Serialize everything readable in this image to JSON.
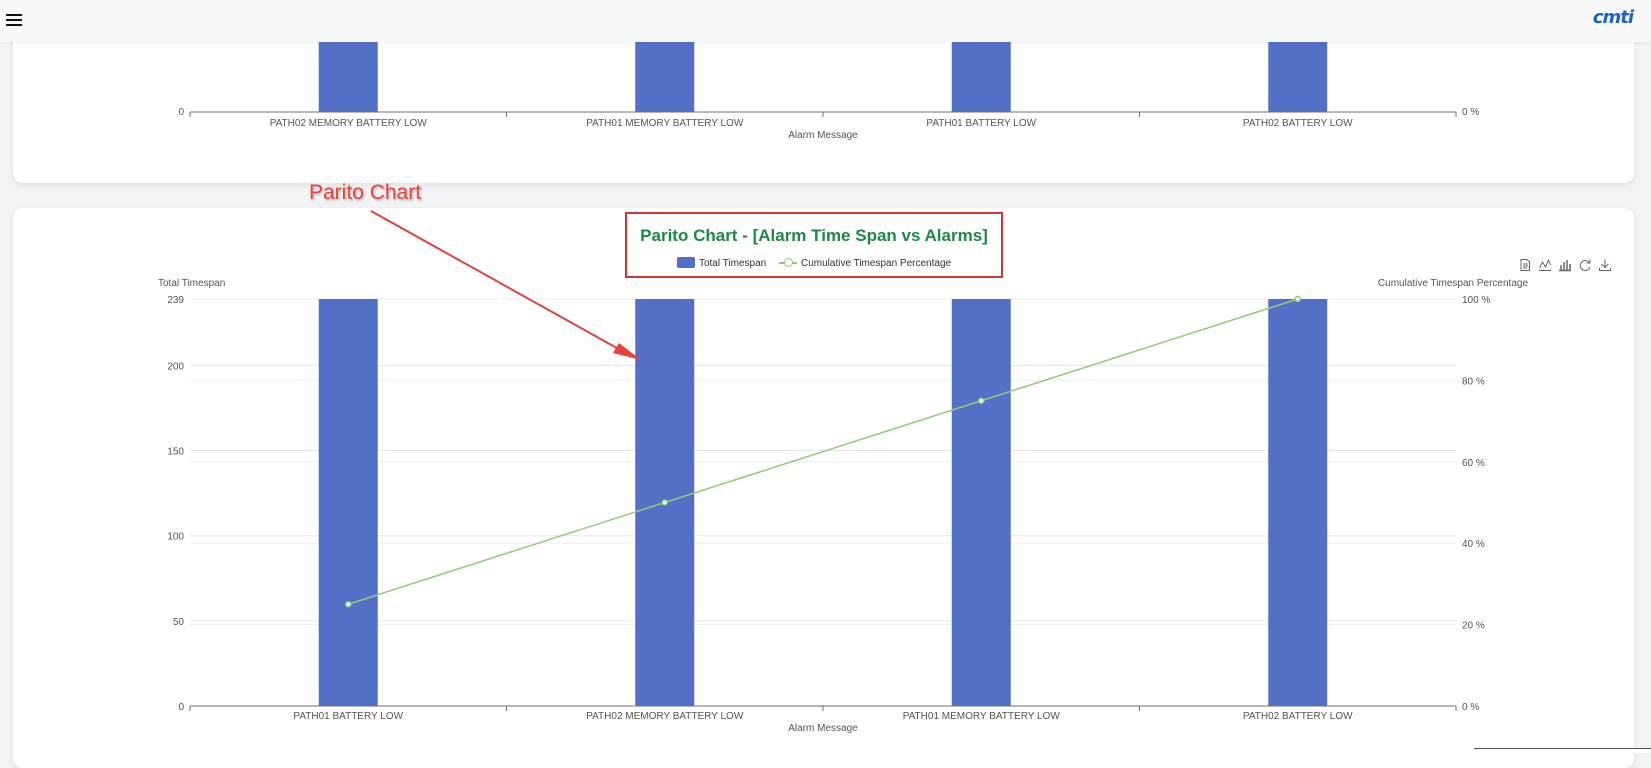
{
  "header": {
    "logo_text": "cmti",
    "menu_icon": "hamburger-menu-icon"
  },
  "annotation": {
    "label": "Parito Chart"
  },
  "toolbox_icons": [
    "data-view-icon",
    "line-chart-icon",
    "bar-chart-icon",
    "restore-icon",
    "save-image-icon"
  ],
  "colors": {
    "bar": "#5470c6",
    "line": "#91cc75",
    "title": "#1a8a47",
    "annotation": "#e8403a"
  },
  "chart_data": [
    {
      "type": "bar",
      "categories": [
        "PATH02 MEMORY BATTERY LOW",
        "PATH01 MEMORY BATTERY LOW",
        "PATH01 BATTERY LOW",
        "PATH02 BATTERY LOW"
      ],
      "xlabel": "Alarm Message",
      "y_tick_label": "0",
      "y2_tick_label": "0 %"
    },
    {
      "type": "bar",
      "title": "Parito Chart - [Alarm Time Span vs Alarms]",
      "categories": [
        "PATH01 BATTERY LOW",
        "PATH02 MEMORY BATTERY LOW",
        "PATH01 MEMORY BATTERY LOW",
        "PATH02 BATTERY LOW"
      ],
      "xlabel": "Alarm Message",
      "ylabel": "Total Timespan",
      "y2label": "Cumulative Timespan Percentage",
      "ylim": [
        0,
        239
      ],
      "y_ticks": [
        0,
        50,
        100,
        150,
        200,
        239
      ],
      "y2lim": [
        0,
        100
      ],
      "y2_ticks": [
        0,
        20,
        40,
        60,
        80,
        100
      ],
      "series": [
        {
          "name": "Total Timespan",
          "type": "bar",
          "values": [
            239,
            239,
            239,
            239
          ]
        },
        {
          "name": "Cumulative Timespan Percentage",
          "type": "line",
          "axis": "right",
          "values": [
            25,
            50,
            75,
            100
          ]
        }
      ]
    }
  ]
}
